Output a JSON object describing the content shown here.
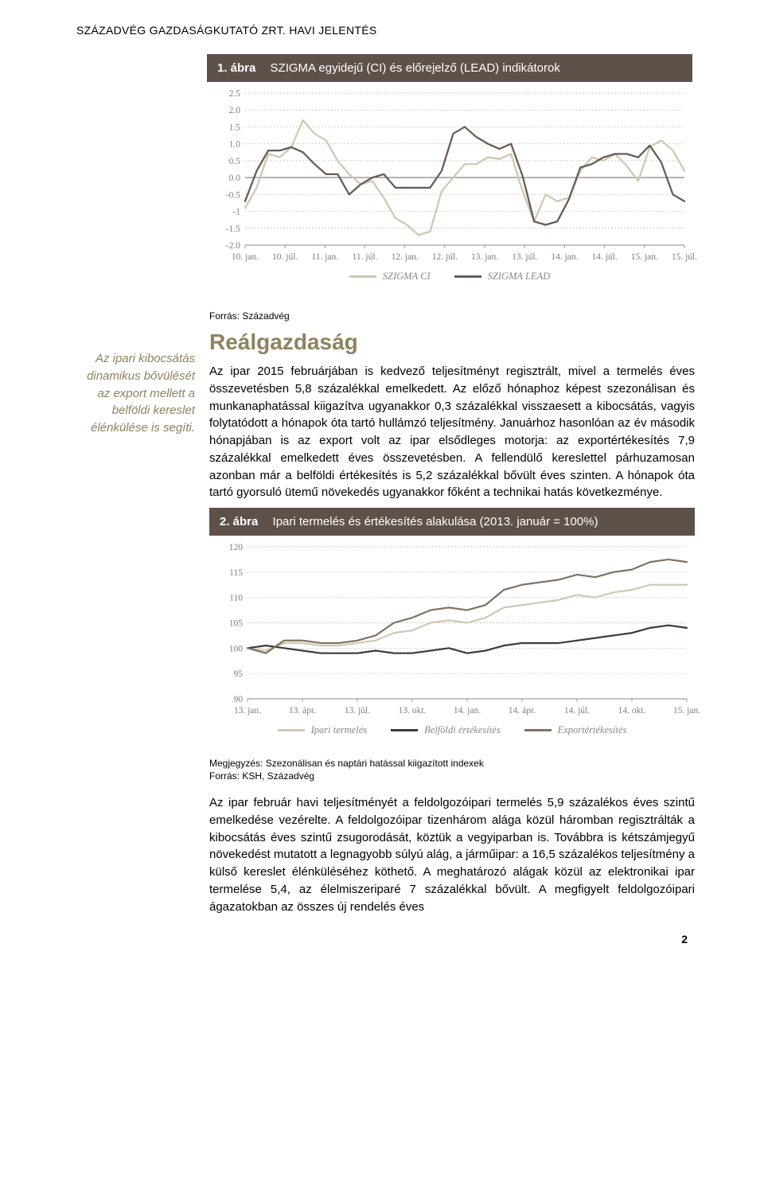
{
  "header": "SZÁZADVÉG GAZDASÁGKUTATÓ ZRT. HAVI JELENTÉS",
  "page_number": "2",
  "chart1": {
    "title_num": "1. ábra",
    "title_text": "SZIGMA egyidejű (CI) és előrejelző (LEAD) indikátorok",
    "type": "line",
    "ylim": [
      -2.0,
      2.5
    ],
    "ytick_step": 0.5,
    "yticks": [
      "-2.0",
      "-1.5",
      "-1",
      "-0.5",
      "0.0",
      "0.5",
      "1.0",
      "1.5",
      "2.0",
      "2.5"
    ],
    "x_labels": [
      "10. jan.",
      "10. júl.",
      "11. jan.",
      "11. júl.",
      "12. jan.",
      "12. júl.",
      "13. jan.",
      "13. júl.",
      "14. jan.",
      "14. júl.",
      "15. jan.",
      "15. júl."
    ],
    "background_color": "#ffffff",
    "grid_color": "#bdbdbd",
    "line_width": 2.3,
    "zero_axis": true,
    "series": [
      {
        "name": "SZIGMA CI",
        "color": "#d0c8b0",
        "values": [
          -0.9,
          -0.3,
          0.7,
          0.6,
          0.9,
          1.7,
          1.3,
          1.1,
          0.5,
          0.1,
          -0.2,
          -0.1,
          -0.6,
          -1.2,
          -1.4,
          -1.7,
          -1.6,
          -0.4,
          0.0,
          0.4,
          0.4,
          0.6,
          0.55,
          0.7,
          -0.4,
          -1.3,
          -0.5,
          -0.7,
          -0.6,
          0.2,
          0.6,
          0.5,
          0.7,
          0.35,
          -0.1,
          0.9,
          1.1,
          0.8,
          0.2
        ]
      },
      {
        "name": "SZIGMA LEAD",
        "color": "#6a5c54",
        "values": [
          -0.7,
          0.2,
          0.8,
          0.8,
          0.9,
          0.75,
          0.4,
          0.1,
          0.1,
          -0.5,
          -0.2,
          0.0,
          0.1,
          -0.3,
          -0.3,
          -0.3,
          -0.3,
          0.2,
          1.3,
          1.5,
          1.2,
          1.0,
          0.85,
          1.0,
          0.05,
          -1.3,
          -1.4,
          -1.3,
          -0.65,
          0.3,
          0.4,
          0.6,
          0.7,
          0.7,
          0.6,
          0.95,
          0.45,
          -0.5,
          -0.7
        ]
      }
    ],
    "source": "Forrás: Századvég"
  },
  "sidebar_text": "Az ipari kibocsátás dinamikus bővülését az export mellett a belföldi kereslet élénkülése is segíti.",
  "section_heading": "Reálgazdaság",
  "para1": "Az ipar 2015 februárjában is kedvező teljesítményt regisztrált, mivel a termelés éves összevetésben 5,8 százalékkal emelkedett. Az előző hónaphoz képest szezonálisan és munkanaphatással kiigazítva ugyanakkor 0,3 százalékkal visszaesett a kibocsátás, vagyis folytatódott a hónapok óta tartó hullámzó teljesítmény. Januárhoz hasonlóan az év második hónapjában is az export volt az ipar elsődleges motorja: az exportértékesítés 7,9 százalékkal emelkedett éves összevetésben. A fellendülő kereslettel párhuzamosan azonban már a belföldi értékesítés is 5,2 százalékkal bővült éves szinten. A hónapok óta tartó gyorsuló ütemű növekedés ugyanakkor főként a technikai hatás következménye.",
  "chart2": {
    "title_num": "2. ábra",
    "title_text": "Ipari termelés és értékesítés alakulása (2013. január = 100%)",
    "type": "line",
    "ylim": [
      90,
      120
    ],
    "ytick_step": 5,
    "yticks": [
      "90",
      "95",
      "100",
      "105",
      "110",
      "115",
      "120"
    ],
    "x_labels": [
      "13. jan.",
      "13. ápr.",
      "13. júl.",
      "13. okt.",
      "14. jan.",
      "14. ápr.",
      "14. júl.",
      "14. okt.",
      "15. jan."
    ],
    "background_color": "#ffffff",
    "grid_color": "#bdbdbd",
    "line_width": 2.2,
    "series": [
      {
        "name": "Ipari termelés",
        "color": "#d0c8b0",
        "values": [
          100,
          99.5,
          101,
          101,
          100.5,
          100.5,
          101,
          101.5,
          103,
          103.5,
          105,
          105.5,
          105,
          106,
          108,
          108.5,
          109,
          109.5,
          110.5,
          110,
          111,
          111.5,
          112.5,
          112.5,
          112.5
        ]
      },
      {
        "name": "Belföldi értékesítés",
        "color": "#3f3a35",
        "values": [
          100,
          100.5,
          100,
          99.5,
          99,
          99,
          99,
          99.5,
          99,
          99,
          99.5,
          100,
          99,
          99.5,
          100.5,
          101,
          101,
          101,
          101.5,
          102,
          102.5,
          103,
          104,
          104.5,
          104
        ]
      },
      {
        "name": "Exportértékesítés",
        "color": "#807260",
        "values": [
          100,
          99,
          101.5,
          101.5,
          101,
          101,
          101.5,
          102.5,
          105,
          106,
          107.5,
          108,
          107.5,
          108.5,
          111.5,
          112.5,
          113,
          113.5,
          114.5,
          114,
          115,
          115.5,
          117,
          117.5,
          117
        ]
      }
    ],
    "note": "Megjegyzés: Szezonálisan és naptári hatással kiigazított indexek",
    "source": "Forrás: KSH, Századvég"
  },
  "para2": "Az ipar február havi teljesítményét a feldolgozóipari termelés 5,9 százalékos éves szintű emelkedése vezérelte. A feldolgozóipar tizenhárom alága közül háromban regisztrálták a kibocsátás éves szintű zsugorodását, köztük a vegyiparban is. Továbbra is kétszámjegyű növekedést mutatott a legnagyobb súlyú alág, a járműipar: a 16,5 százalékos teljesítmény a külső kereslet élénküléséhez köthető. A meghatározó alágak közül az elektronikai ipar termelése 5,4, az élelmiszeriparé 7 százalékkal bővült. A megfigyelt feldolgozóipari ágazatokban az összes új rendelés éves"
}
